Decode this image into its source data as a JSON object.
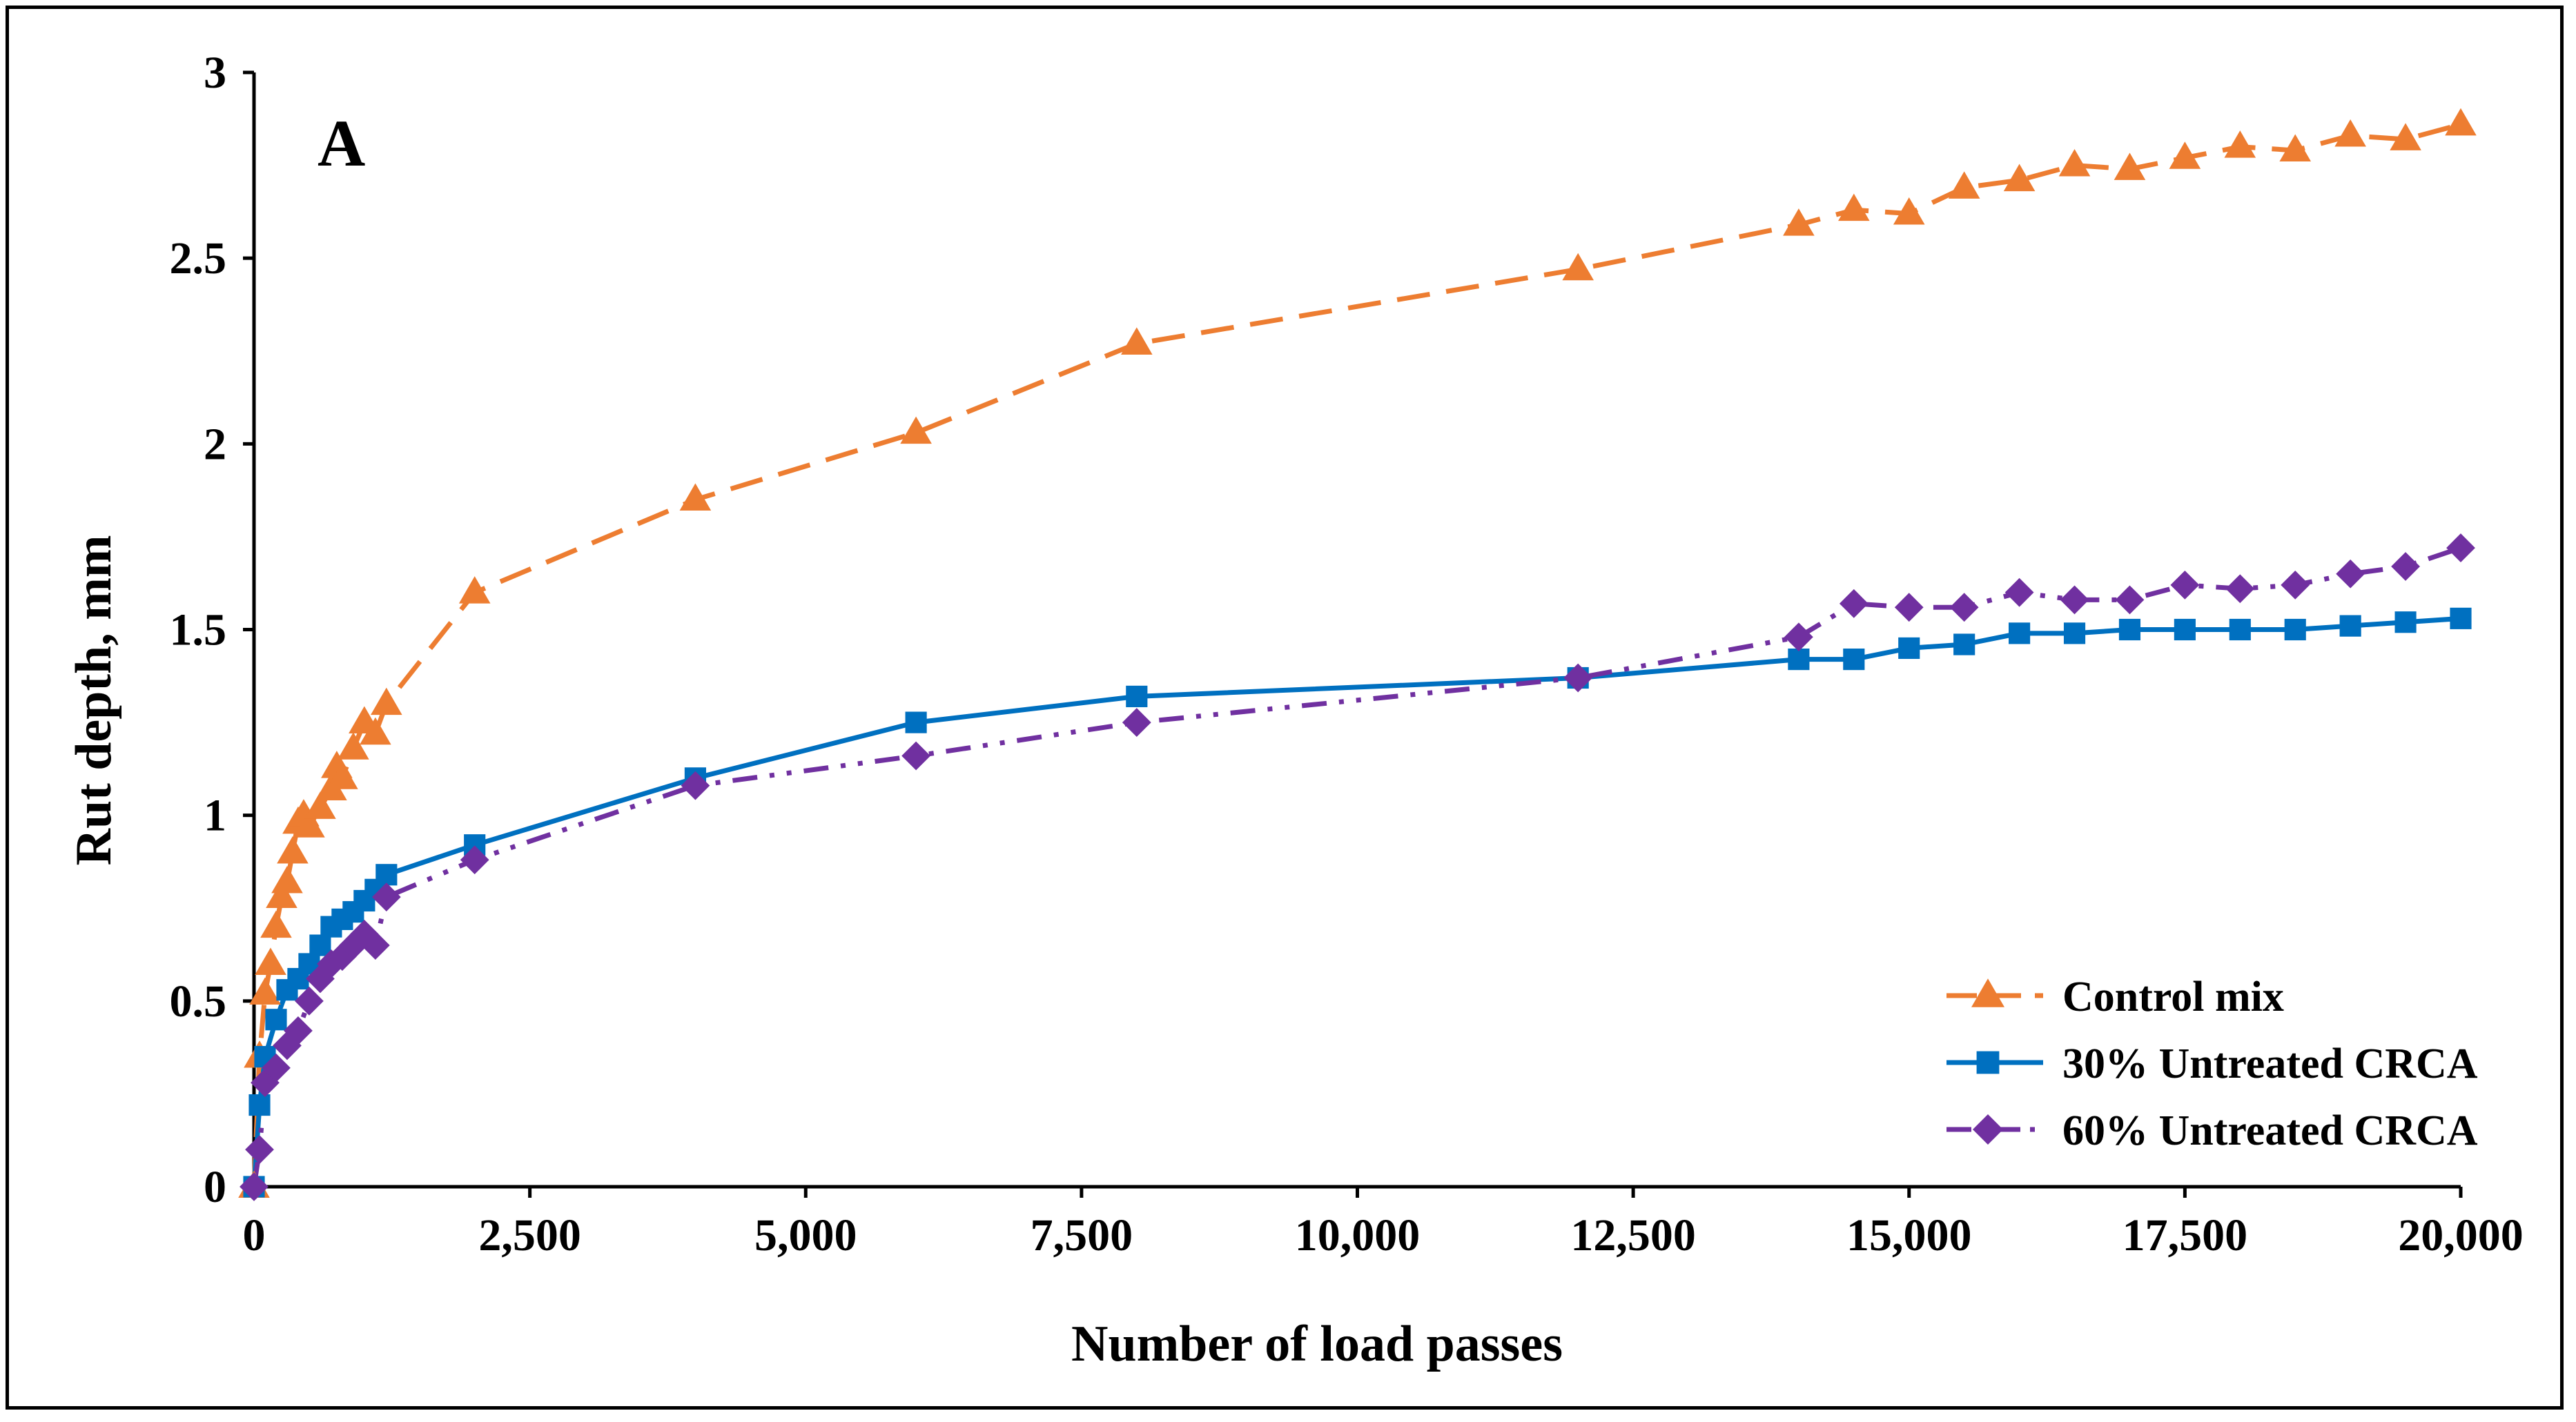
{
  "chart_data": {
    "type": "line",
    "panel_label": "A",
    "xlabel": "Number of load passes",
    "ylabel": "Rut depth, mm",
    "xlim": [
      0,
      20000
    ],
    "ylim": [
      0,
      3
    ],
    "x_ticks": [
      {
        "value": 0,
        "label": "0"
      },
      {
        "value": 2500,
        "label": "2,500"
      },
      {
        "value": 5000,
        "label": "5,000"
      },
      {
        "value": 7500,
        "label": "7,500"
      },
      {
        "value": 10000,
        "label": "10,000"
      },
      {
        "value": 12500,
        "label": "12,500"
      },
      {
        "value": 15000,
        "label": "15,000"
      },
      {
        "value": 17500,
        "label": "17,500"
      },
      {
        "value": 20000,
        "label": "20,000"
      }
    ],
    "y_ticks": [
      {
        "value": 0,
        "label": "0"
      },
      {
        "value": 0.5,
        "label": "0.5"
      },
      {
        "value": 1,
        "label": "1"
      },
      {
        "value": 1.5,
        "label": "1.5"
      },
      {
        "value": 2,
        "label": "2"
      },
      {
        "value": 2.5,
        "label": "2.5"
      },
      {
        "value": 3,
        "label": "3"
      }
    ],
    "grid": false,
    "legend_position": "bottom-right",
    "series": [
      {
        "name": "Control mix",
        "color": "#ED7D31",
        "marker": "triangle",
        "line_style": "dashed",
        "x": [
          0,
          50,
          100,
          150,
          200,
          250,
          300,
          350,
          400,
          450,
          500,
          600,
          700,
          750,
          800,
          900,
          1000,
          1100,
          1200,
          2000,
          4000,
          6000,
          8000,
          12000,
          14000,
          14500,
          15000,
          15500,
          16000,
          16500,
          17000,
          17500,
          18000,
          18500,
          19000,
          19500,
          20000
        ],
        "y": [
          0,
          0.35,
          0.52,
          0.6,
          0.7,
          0.78,
          0.82,
          0.9,
          0.98,
          1.0,
          0.97,
          1.02,
          1.07,
          1.13,
          1.1,
          1.18,
          1.25,
          1.22,
          1.3,
          1.6,
          1.85,
          2.03,
          2.27,
          2.47,
          2.59,
          2.63,
          2.62,
          2.69,
          2.71,
          2.75,
          2.74,
          2.77,
          2.8,
          2.79,
          2.83,
          2.82,
          2.86
        ]
      },
      {
        "name": "30% Untreated CRCA",
        "color": "#0070C0",
        "marker": "square",
        "line_style": "solid",
        "x": [
          0,
          50,
          100,
          200,
          300,
          400,
          500,
          600,
          700,
          800,
          900,
          1000,
          1100,
          1200,
          2000,
          4000,
          6000,
          8000,
          12000,
          14000,
          14500,
          15000,
          15500,
          16000,
          16500,
          17000,
          17500,
          18000,
          18500,
          19000,
          19500,
          20000
        ],
        "y": [
          0,
          0.22,
          0.35,
          0.45,
          0.53,
          0.56,
          0.6,
          0.65,
          0.7,
          0.72,
          0.74,
          0.77,
          0.8,
          0.84,
          0.92,
          1.1,
          1.25,
          1.32,
          1.37,
          1.42,
          1.42,
          1.45,
          1.46,
          1.49,
          1.49,
          1.5,
          1.5,
          1.5,
          1.5,
          1.51,
          1.52,
          1.53
        ]
      },
      {
        "name": "60% Untreated CRCA",
        "color": "#7030A0",
        "marker": "diamond",
        "line_style": "dash-dot",
        "x": [
          0,
          50,
          100,
          200,
          300,
          400,
          500,
          600,
          700,
          800,
          900,
          1000,
          1100,
          1200,
          2000,
          4000,
          6000,
          8000,
          12000,
          14000,
          14500,
          15000,
          15500,
          16000,
          16500,
          17000,
          17500,
          18000,
          18500,
          19000,
          19500,
          20000
        ],
        "y": [
          0,
          0.1,
          0.28,
          0.32,
          0.38,
          0.42,
          0.5,
          0.56,
          0.6,
          0.62,
          0.65,
          0.68,
          0.65,
          0.78,
          0.88,
          1.08,
          1.16,
          1.25,
          1.37,
          1.48,
          1.57,
          1.56,
          1.56,
          1.6,
          1.58,
          1.58,
          1.62,
          1.61,
          1.62,
          1.65,
          1.67,
          1.72
        ]
      }
    ]
  }
}
